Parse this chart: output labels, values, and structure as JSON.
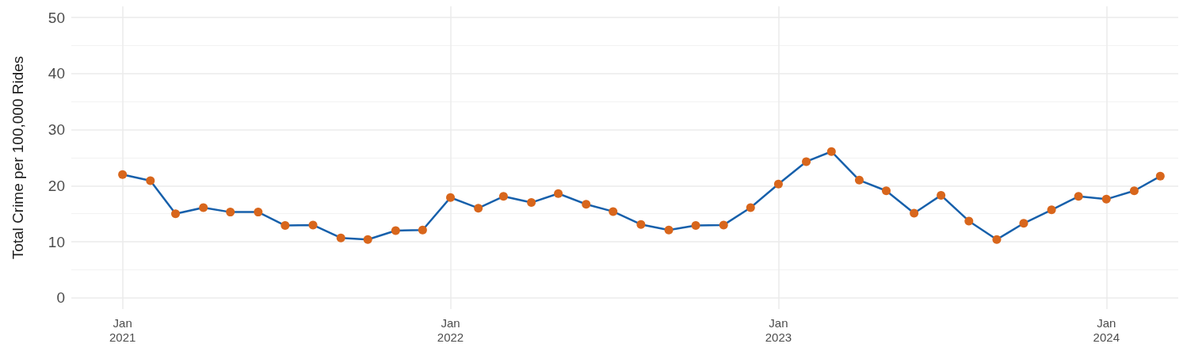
{
  "chart_data": {
    "type": "line",
    "ylabel": "Total Crime per 100,000 Rides",
    "x": [
      "2021-01",
      "2021-02",
      "2021-03",
      "2021-04",
      "2021-05",
      "2021-06",
      "2021-07",
      "2021-08",
      "2021-09",
      "2021-10",
      "2021-11",
      "2021-12",
      "2022-01",
      "2022-02",
      "2022-03",
      "2022-04",
      "2022-05",
      "2022-06",
      "2022-07",
      "2022-08",
      "2022-09",
      "2022-10",
      "2022-11",
      "2022-12",
      "2023-01",
      "2023-02",
      "2023-03",
      "2023-04",
      "2023-05",
      "2023-06",
      "2023-07",
      "2023-08",
      "2023-09",
      "2023-10",
      "2023-11",
      "2023-12",
      "2024-01",
      "2024-02",
      "2024-03"
    ],
    "series": [
      {
        "color": "#1760ab",
        "colors": [
          "#d8661c",
          "#d8661c",
          "#d8661c",
          "#d8661c",
          "#d8661c",
          "#d8661c",
          "#d8661c",
          "#d8661c",
          "#d8661c",
          "#d8661c",
          "#d8661c",
          "#d8661c",
          "#d8661c",
          "#d8661c",
          "#d8661c",
          "#d8661c",
          "#d8661c",
          "#d8661c",
          "#d8661c",
          "#d8661c",
          "#d8661c",
          "#d8661c",
          "#d8661c",
          "#d8661c",
          "#d8661c",
          "#d8661c",
          "#d8661c",
          "#d8661c",
          "#d8661c",
          "#d8661c",
          "#d8661c",
          "#d8661c",
          "#d8661c",
          "#d8661c",
          "#d8661c",
          "#d8661c",
          "#d8661c",
          "#d8661c",
          "#d8661c"
        ],
        "values": [
          22.0,
          20.9,
          15.0,
          16.1,
          15.3,
          15.3,
          12.9,
          13.0,
          10.7,
          10.4,
          12.0,
          12.1,
          17.9,
          16.0,
          18.1,
          17.0,
          18.6,
          16.7,
          15.4,
          13.1,
          12.1,
          12.9,
          13.0,
          16.1,
          20.3,
          24.3,
          26.1,
          21.0,
          19.1,
          15.1,
          18.3,
          13.7,
          10.4,
          13.3,
          15.7,
          18.1,
          17.6,
          19.1,
          21.7
        ]
      }
    ],
    "xlim": [
      "2020-11-05",
      "2024-03-21"
    ],
    "xticks": [
      {
        "value": "2021-01",
        "label": "Jan\n2021"
      },
      {
        "value": "2022-01",
        "label": "Jan\n2022"
      },
      {
        "value": "2023-01",
        "label": "Jan\n2023"
      },
      {
        "value": "2024-01",
        "label": "Jan\n2024"
      }
    ],
    "ylim": [
      -2,
      52
    ],
    "yticks": [
      0,
      10,
      20,
      30,
      40,
      50
    ],
    "grid": true,
    "marker": "circle",
    "line_style": "solid"
  }
}
